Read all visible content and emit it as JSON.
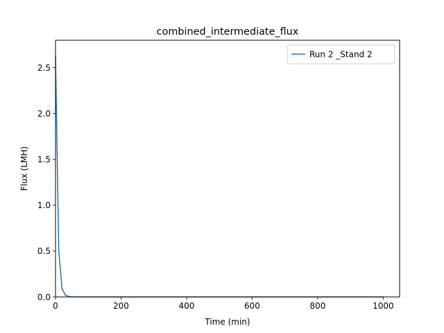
{
  "chart_data": {
    "type": "line",
    "title": "combined_intermediate_flux",
    "xlabel": "Time (min)",
    "ylabel": "Flux (LMH)",
    "xlim": [
      0,
      1050
    ],
    "ylim": [
      0,
      2.8
    ],
    "xticks": [
      0,
      200,
      400,
      600,
      800,
      1000
    ],
    "xtick_labels": [
      "0",
      "200",
      "400",
      "600",
      "800",
      "1000"
    ],
    "yticks": [
      0.0,
      0.5,
      1.0,
      1.5,
      2.0,
      2.5
    ],
    "ytick_labels": [
      "0.0",
      "0.5",
      "1.0",
      "1.5",
      "2.0",
      "2.5"
    ],
    "grid": false,
    "legend_position": "top-right",
    "series": [
      {
        "name": "Run 2 _Stand 2",
        "color": "#1f77b4",
        "x": [
          0,
          10,
          20,
          30,
          40,
          50,
          60,
          80,
          100,
          200,
          300,
          400,
          500,
          600,
          700,
          800,
          900,
          1000
        ],
        "y": [
          2.62,
          0.5,
          0.09,
          0.02,
          0.005,
          0.002,
          0.001,
          0.0,
          0.0,
          0.0,
          0.0,
          0.0,
          0.0,
          0.0,
          0.0,
          0.0,
          0.0,
          0.0
        ]
      }
    ]
  }
}
